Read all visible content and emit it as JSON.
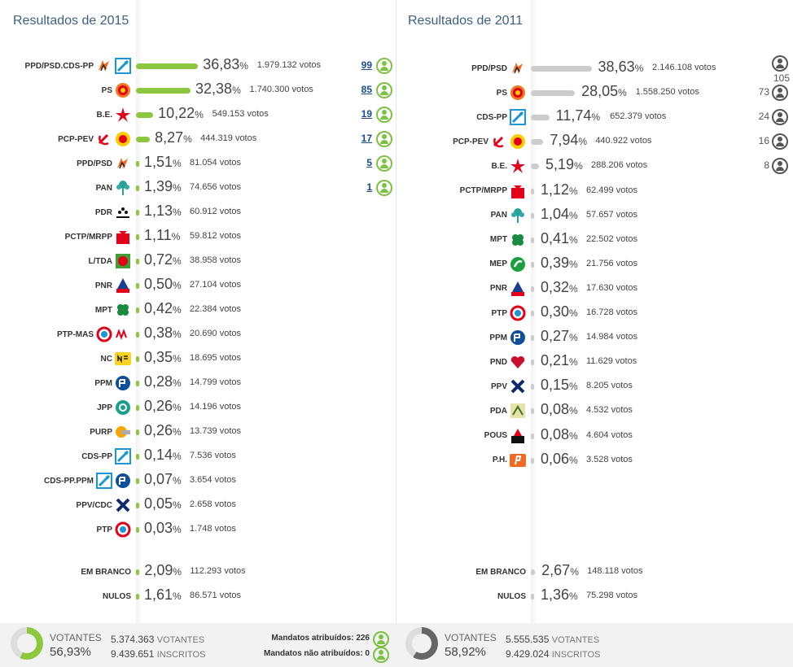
{
  "panels": [
    {
      "id": "2015",
      "title": "Resultados de 2015",
      "bar_color": "#8dc63f",
      "percent_sign": "%",
      "votes_unit": "votos",
      "parties": [
        {
          "name": "PPD/PSD.CDS-PP",
          "logos": [
            "psd",
            "cds"
          ],
          "pct": "36,83",
          "pct_value": 36.83,
          "votes": "1.979.132",
          "seats": "99"
        },
        {
          "name": "PS",
          "logos": [
            "ps"
          ],
          "pct": "32,38",
          "pct_value": 32.38,
          "votes": "1.740.300",
          "seats": "85"
        },
        {
          "name": "B.E.",
          "logos": [
            "be"
          ],
          "pct": "10,22",
          "pct_value": 10.22,
          "votes": "549.153",
          "seats": "19"
        },
        {
          "name": "PCP-PEV",
          "logos": [
            "pcp",
            "pev"
          ],
          "pct": "8,27",
          "pct_value": 8.27,
          "votes": "444.319",
          "seats": "17"
        },
        {
          "name": "PPD/PSD",
          "logos": [
            "psd"
          ],
          "pct": "1,51",
          "pct_value": 1.51,
          "votes": "81.054",
          "seats": "5"
        },
        {
          "name": "PAN",
          "logos": [
            "pan"
          ],
          "pct": "1,39",
          "pct_value": 1.39,
          "votes": "74.656",
          "seats": "1"
        },
        {
          "name": "PDR",
          "logos": [
            "pdr"
          ],
          "pct": "1,13",
          "pct_value": 1.13,
          "votes": "60.912"
        },
        {
          "name": "PCTP/MRPP",
          "logos": [
            "pctp"
          ],
          "pct": "1,11",
          "pct_value": 1.11,
          "votes": "59.812"
        },
        {
          "name": "L/TDA",
          "logos": [
            "livre"
          ],
          "pct": "0,72",
          "pct_value": 0.72,
          "votes": "38.958"
        },
        {
          "name": "PNR",
          "logos": [
            "pnr"
          ],
          "pct": "0,50",
          "pct_value": 0.5,
          "votes": "27.104"
        },
        {
          "name": "MPT",
          "logos": [
            "mpt"
          ],
          "pct": "0,42",
          "pct_value": 0.42,
          "votes": "22.384"
        },
        {
          "name": "PTP-MAS",
          "logos": [
            "ptp",
            "mas"
          ],
          "pct": "0,38",
          "pct_value": 0.38,
          "votes": "20.690"
        },
        {
          "name": "NC",
          "logos": [
            "nc"
          ],
          "pct": "0,35",
          "pct_value": 0.35,
          "votes": "18.695"
        },
        {
          "name": "PPM",
          "logos": [
            "ppm"
          ],
          "pct": "0,28",
          "pct_value": 0.28,
          "votes": "14.799"
        },
        {
          "name": "JPP",
          "logos": [
            "jpp"
          ],
          "pct": "0,26",
          "pct_value": 0.26,
          "votes": "14.196"
        },
        {
          "name": "PURP",
          "logos": [
            "purp"
          ],
          "pct": "0,26",
          "pct_value": 0.26,
          "votes": "13.739"
        },
        {
          "name": "CDS-PP",
          "logos": [
            "cds"
          ],
          "pct": "0,14",
          "pct_value": 0.14,
          "votes": "7.536"
        },
        {
          "name": "CDS-PP.PPM",
          "logos": [
            "cds",
            "ppm"
          ],
          "pct": "0,07",
          "pct_value": 0.07,
          "votes": "3.654"
        },
        {
          "name": "PPV/CDC",
          "logos": [
            "ppv"
          ],
          "pct": "0,05",
          "pct_value": 0.05,
          "votes": "2.658"
        },
        {
          "name": "PTP",
          "logos": [
            "ptp"
          ],
          "pct": "0,03",
          "pct_value": 0.03,
          "votes": "1.748"
        }
      ],
      "blank": {
        "name": "EM BRANCO",
        "pct": "2,09",
        "pct_value": 2.09,
        "votes": "112.293"
      },
      "null": {
        "name": "NULOS",
        "pct": "1,61",
        "pct_value": 1.61,
        "votes": "86.571"
      },
      "footer": {
        "votantes_label": "VOTANTES",
        "turnout": "56,93%",
        "turnout_value": 56.93,
        "votantes": "5.374.363",
        "votantes_unit": "VOTANTES",
        "inscritos": "9.439.651",
        "inscritos_unit": "INSCRITOS",
        "ring_color": "#8dc63f",
        "mandatos_atribuidos_label": "Mandatos atribuídos: 226",
        "mandatos_nao_label": "Mandatos não atribuídos: 0"
      }
    },
    {
      "id": "2011",
      "title": "Resultados de 2011",
      "bar_color": "#cccccc",
      "percent_sign": "%",
      "votes_unit": "votos",
      "parties": [
        {
          "name": "PPD/PSD",
          "logos": [
            "psd"
          ],
          "pct": "38,63",
          "pct_value": 38.63,
          "votes": "2.146.108",
          "seats": "105"
        },
        {
          "name": "PS",
          "logos": [
            "ps"
          ],
          "pct": "28,05",
          "pct_value": 28.05,
          "votes": "1.558.250",
          "seats": "73"
        },
        {
          "name": "CDS-PP",
          "logos": [
            "cds"
          ],
          "pct": "11,74",
          "pct_value": 11.74,
          "votes": "652.379",
          "seats": "24"
        },
        {
          "name": "PCP-PEV",
          "logos": [
            "pcp",
            "pev"
          ],
          "pct": "7,94",
          "pct_value": 7.94,
          "votes": "440.922",
          "seats": "16"
        },
        {
          "name": "B.E.",
          "logos": [
            "be"
          ],
          "pct": "5,19",
          "pct_value": 5.19,
          "votes": "288.206",
          "seats": "8"
        },
        {
          "name": "PCTP/MRPP",
          "logos": [
            "pctp"
          ],
          "pct": "1,12",
          "pct_value": 1.12,
          "votes": "62.499"
        },
        {
          "name": "PAN",
          "logos": [
            "pan"
          ],
          "pct": "1,04",
          "pct_value": 1.04,
          "votes": "57.657"
        },
        {
          "name": "MPT",
          "logos": [
            "mpt"
          ],
          "pct": "0,41",
          "pct_value": 0.41,
          "votes": "22.502"
        },
        {
          "name": "MEP",
          "logos": [
            "mep"
          ],
          "pct": "0,39",
          "pct_value": 0.39,
          "votes": "21.756"
        },
        {
          "name": "PNR",
          "logos": [
            "pnr"
          ],
          "pct": "0,32",
          "pct_value": 0.32,
          "votes": "17.630"
        },
        {
          "name": "PTP",
          "logos": [
            "ptp"
          ],
          "pct": "0,30",
          "pct_value": 0.3,
          "votes": "16.728"
        },
        {
          "name": "PPM",
          "logos": [
            "ppm"
          ],
          "pct": "0,27",
          "pct_value": 0.27,
          "votes": "14.984"
        },
        {
          "name": "PND",
          "logos": [
            "pnd"
          ],
          "pct": "0,21",
          "pct_value": 0.21,
          "votes": "11.629"
        },
        {
          "name": "PPV",
          "logos": [
            "ppv"
          ],
          "pct": "0,15",
          "pct_value": 0.15,
          "votes": "8.205"
        },
        {
          "name": "PDA",
          "logos": [
            "pda"
          ],
          "pct": "0,08",
          "pct_value": 0.08,
          "votes": "4.532"
        },
        {
          "name": "POUS",
          "logos": [
            "pous"
          ],
          "pct": "0,08",
          "pct_value": 0.08,
          "votes": "4.604"
        },
        {
          "name": "P.H.",
          "logos": [
            "ph"
          ],
          "pct": "0,06",
          "pct_value": 0.06,
          "votes": "3.528"
        }
      ],
      "blank": {
        "name": "EM BRANCO",
        "pct": "2,67",
        "pct_value": 2.67,
        "votes": "148.118"
      },
      "null": {
        "name": "NULOS",
        "pct": "1,36",
        "pct_value": 1.36,
        "votes": "75.298"
      },
      "footer": {
        "votantes_label": "VOTANTES",
        "turnout": "58,92%",
        "turnout_value": 58.92,
        "votantes": "5.555.535",
        "votantes_unit": "VOTANTES",
        "inscritos": "9.429.024",
        "inscritos_unit": "INSCRITOS",
        "ring_color": "#666666"
      }
    }
  ]
}
